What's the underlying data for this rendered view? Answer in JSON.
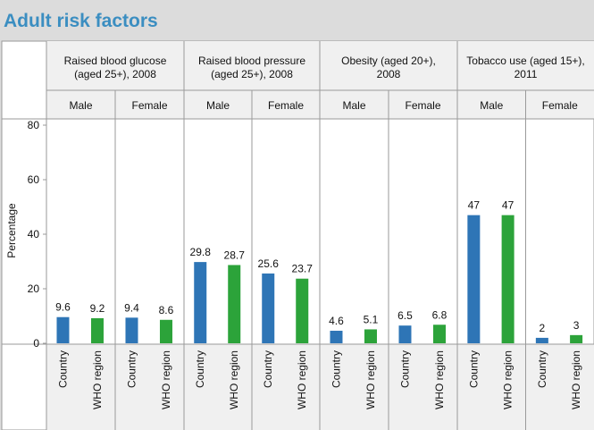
{
  "page": {
    "title": "Adult risk factors"
  },
  "chart_data": {
    "type": "bar",
    "ylabel": "Percentage",
    "ylim": [
      0,
      80
    ],
    "yticks": [
      0,
      20,
      40,
      60,
      80
    ],
    "series_colors": {
      "Country": "#2e75b6",
      "WHO region": "#2ca33a"
    },
    "group_header_color": "#f0f0f0",
    "plot_background": "#ffffff",
    "groups": [
      {
        "label_lines": [
          "Raised blood glucose",
          "(aged 25+), 2008"
        ],
        "subgroups": [
          {
            "label": "Male",
            "bars": [
              {
                "category": "Country",
                "value": 9.6,
                "label": "9.6"
              },
              {
                "category": "WHO region",
                "value": 9.2,
                "label": "9.2"
              }
            ]
          },
          {
            "label": "Female",
            "bars": [
              {
                "category": "Country",
                "value": 9.4,
                "label": "9.4"
              },
              {
                "category": "WHO region",
                "value": 8.6,
                "label": "8.6"
              }
            ]
          }
        ]
      },
      {
        "label_lines": [
          "Raised blood pressure",
          "(aged 25+), 2008"
        ],
        "subgroups": [
          {
            "label": "Male",
            "bars": [
              {
                "category": "Country",
                "value": 29.8,
                "label": "29.8"
              },
              {
                "category": "WHO region",
                "value": 28.7,
                "label": "28.7"
              }
            ]
          },
          {
            "label": "Female",
            "bars": [
              {
                "category": "Country",
                "value": 25.6,
                "label": "25.6"
              },
              {
                "category": "WHO region",
                "value": 23.7,
                "label": "23.7"
              }
            ]
          }
        ]
      },
      {
        "label_lines": [
          "Obesity (aged 20+),",
          "2008"
        ],
        "subgroups": [
          {
            "label": "Male",
            "bars": [
              {
                "category": "Country",
                "value": 4.6,
                "label": "4.6"
              },
              {
                "category": "WHO region",
                "value": 5.1,
                "label": "5.1"
              }
            ]
          },
          {
            "label": "Female",
            "bars": [
              {
                "category": "Country",
                "value": 6.5,
                "label": "6.5"
              },
              {
                "category": "WHO region",
                "value": 6.8,
                "label": "6.8"
              }
            ]
          }
        ]
      },
      {
        "label_lines": [
          "Tobacco use (aged 15+),",
          "2011"
        ],
        "subgroups": [
          {
            "label": "Male",
            "bars": [
              {
                "category": "Country",
                "value": 47,
                "label": "47"
              },
              {
                "category": "WHO region",
                "value": 47,
                "label": "47"
              }
            ]
          },
          {
            "label": "Female",
            "bars": [
              {
                "category": "Country",
                "value": 2,
                "label": "2"
              },
              {
                "category": "WHO region",
                "value": 3,
                "label": "3"
              }
            ]
          }
        ]
      }
    ]
  }
}
